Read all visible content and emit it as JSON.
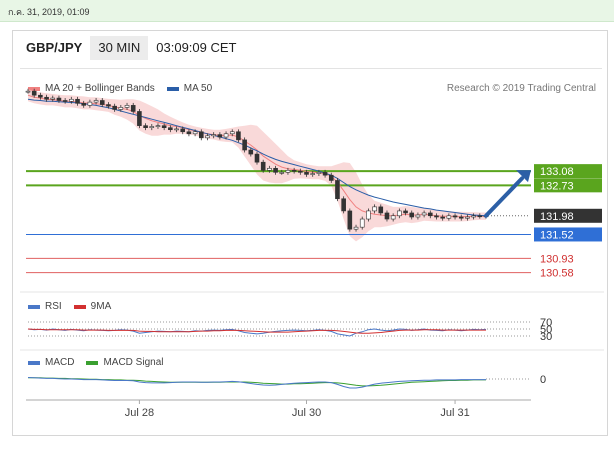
{
  "datestamp": "ก.ค. 31, 2019, 01:09",
  "header": {
    "symbol": "GBP/JPY",
    "timeframe": "30 MIN",
    "time": "03:09:09 CET"
  },
  "legend_main": [
    {
      "label": "MA 20 + Bollinger Bands",
      "color": "#f08080"
    },
    {
      "label": "MA 50",
      "color": "#2a5ea8"
    }
  ],
  "credit": "Research © 2019 Trading Central",
  "legend_rsi": [
    {
      "label": "RSI",
      "color": "#4a78c8"
    },
    {
      "label": "9MA",
      "color": "#d23030"
    }
  ],
  "legend_macd": [
    {
      "label": "MACD",
      "color": "#4a78c8"
    },
    {
      "label": "MACD Signal",
      "color": "#3aa030"
    }
  ],
  "colors": {
    "resistance": "#5aa51e",
    "support": "#2f6fd6",
    "lower": "#e06060",
    "price_tag": "#333333",
    "arrow": "#2c5fa6"
  },
  "chart_data": [
    {
      "type": "line",
      "name": "price",
      "x_ticks": [
        "Jul 28",
        "Jul 30",
        "Jul 31"
      ],
      "ylim": [
        130.3,
        134.3
      ],
      "last_price": "131.98",
      "levels": [
        {
          "value": 133.08,
          "label": "133.08",
          "style": "resistance"
        },
        {
          "value": 132.73,
          "label": "132.73",
          "style": "resistance"
        },
        {
          "value": 131.52,
          "label": "131.52",
          "style": "support"
        },
        {
          "value": 130.93,
          "label": "130.93",
          "style": "lower"
        },
        {
          "value": 130.58,
          "label": "130.58",
          "style": "lower"
        }
      ],
      "close": [
        135.05,
        134.95,
        134.9,
        134.85,
        134.88,
        134.82,
        134.8,
        134.85,
        134.75,
        134.7,
        134.78,
        134.82,
        134.72,
        134.68,
        134.6,
        134.65,
        134.7,
        134.55,
        134.2,
        134.15,
        134.18,
        134.2,
        134.15,
        134.1,
        134.12,
        134.05,
        134.0,
        134.05,
        133.9,
        133.95,
        133.98,
        133.92,
        134.0,
        134.05,
        133.85,
        133.6,
        133.5,
        133.3,
        133.1,
        133.15,
        133.05,
        133.05,
        133.1,
        133.08,
        133.05,
        133.0,
        133.02,
        133.05,
        132.98,
        132.85,
        132.4,
        132.1,
        131.65,
        131.7,
        131.9,
        132.1,
        132.2,
        132.05,
        131.9,
        131.98,
        132.1,
        132.05,
        131.95,
        132.0,
        132.05,
        131.98,
        131.95,
        131.92,
        131.98,
        131.95,
        131.92,
        131.95,
        131.98,
        131.97,
        131.98
      ],
      "ma50": [
        134.85,
        134.83,
        134.82,
        134.8,
        134.8,
        134.79,
        134.78,
        134.77,
        134.76,
        134.74,
        134.72,
        134.7,
        134.67,
        134.64,
        134.6,
        134.56,
        134.52,
        134.48,
        134.44,
        134.4,
        134.36,
        134.32,
        134.28,
        134.24,
        134.2,
        134.16,
        134.12,
        134.08,
        134.04,
        134.0,
        133.96,
        133.92,
        133.88,
        133.84,
        133.78,
        133.72,
        133.65,
        133.58,
        133.5,
        133.43,
        133.37,
        133.32,
        133.28,
        133.24,
        133.2,
        133.16,
        133.12,
        133.08,
        133.03,
        132.98,
        132.9,
        132.8,
        132.7,
        132.62,
        132.55,
        132.49,
        132.44,
        132.4,
        132.36,
        132.32,
        132.29,
        132.26,
        132.23,
        132.2,
        132.17,
        132.15,
        132.12,
        132.1,
        132.08,
        132.06,
        132.04,
        132.02,
        132.0,
        131.99,
        131.98
      ],
      "ma20": [
        134.95,
        134.9,
        134.88,
        134.85,
        134.84,
        134.82,
        134.8,
        134.8,
        134.78,
        134.76,
        134.75,
        134.74,
        134.72,
        134.7,
        134.66,
        134.63,
        134.6,
        134.55,
        134.45,
        134.38,
        134.32,
        134.28,
        134.24,
        134.2,
        134.18,
        134.15,
        134.1,
        134.07,
        134.03,
        134.0,
        133.98,
        133.96,
        133.96,
        133.97,
        133.92,
        133.82,
        133.72,
        133.6,
        133.45,
        133.35,
        133.25,
        133.18,
        133.14,
        133.12,
        133.1,
        133.07,
        133.05,
        133.04,
        133.02,
        132.96,
        132.8,
        132.6,
        132.38,
        132.2,
        132.1,
        132.05,
        132.02,
        132.0,
        131.98,
        131.98,
        132.0,
        132.02,
        132.0,
        132.0,
        132.02,
        132.0,
        131.98,
        131.97,
        131.97,
        131.96,
        131.96,
        131.96,
        131.97,
        131.97,
        131.97
      ],
      "bb_upper": [
        135.1,
        135.05,
        135.02,
        135.0,
        134.98,
        134.96,
        134.95,
        134.95,
        134.93,
        134.92,
        134.9,
        134.9,
        134.88,
        134.86,
        134.85,
        134.84,
        134.85,
        134.85,
        134.82,
        134.75,
        134.68,
        134.6,
        134.5,
        134.42,
        134.35,
        134.28,
        134.22,
        134.18,
        134.15,
        134.12,
        134.1,
        134.1,
        134.12,
        134.15,
        134.18,
        134.2,
        134.22,
        134.2,
        134.05,
        133.9,
        133.75,
        133.6,
        133.45,
        133.35,
        133.3,
        133.25,
        133.22,
        133.2,
        133.2,
        133.2,
        133.25,
        133.3,
        133.28,
        133.05,
        132.75,
        132.5,
        132.35,
        132.3,
        132.25,
        132.2,
        132.2,
        132.22,
        132.2,
        132.18,
        132.18,
        132.15,
        132.12,
        132.1,
        132.1,
        132.08,
        132.08,
        132.07,
        132.07,
        132.06,
        132.06
      ],
      "bb_lower": [
        134.8,
        134.75,
        134.72,
        134.7,
        134.7,
        134.68,
        134.65,
        134.65,
        134.63,
        134.6,
        134.6,
        134.58,
        134.56,
        134.54,
        134.47,
        134.42,
        134.35,
        134.25,
        134.08,
        134.0,
        133.95,
        133.95,
        133.98,
        133.98,
        134.0,
        134.0,
        133.98,
        133.96,
        133.91,
        133.88,
        133.86,
        133.82,
        133.8,
        133.79,
        133.66,
        133.44,
        133.22,
        133.0,
        132.85,
        132.8,
        132.78,
        132.78,
        132.83,
        132.89,
        132.9,
        132.89,
        132.88,
        132.88,
        132.84,
        132.72,
        132.35,
        131.9,
        131.48,
        131.35,
        131.45,
        131.6,
        131.7,
        131.7,
        131.72,
        131.76,
        131.8,
        131.82,
        131.8,
        131.82,
        131.86,
        131.85,
        131.84,
        131.84,
        131.84,
        131.84,
        131.84,
        131.85,
        131.87,
        131.88,
        131.88
      ]
    },
    {
      "type": "line",
      "name": "rsi",
      "y_ticks": [
        "70",
        "50",
        "30"
      ],
      "rsi": [
        50,
        48,
        49,
        47,
        50,
        48,
        46,
        49,
        47,
        45,
        48,
        47,
        46,
        45,
        46,
        48,
        47,
        44,
        38,
        40,
        42,
        44,
        43,
        42,
        44,
        43,
        42,
        45,
        44,
        46,
        47,
        46,
        48,
        49,
        45,
        40,
        38,
        36,
        38,
        41,
        43,
        45,
        46,
        47,
        46,
        45,
        46,
        48,
        46,
        43,
        36,
        33,
        30,
        38,
        42,
        48,
        50,
        47,
        45,
        47,
        50,
        49,
        46,
        48,
        50,
        47,
        46,
        45,
        48,
        47,
        45,
        47,
        49,
        48,
        49
      ],
      "ma9": [
        50,
        49,
        49,
        48,
        48,
        48,
        48,
        48,
        48,
        47,
        47,
        47,
        47,
        46,
        46,
        46,
        46,
        46,
        44,
        43,
        43,
        42,
        42,
        42,
        42,
        42,
        42,
        43,
        44,
        44,
        45,
        45,
        46,
        46,
        46,
        45,
        44,
        43,
        42,
        41,
        41,
        41,
        41,
        42,
        43,
        44,
        45,
        46,
        46,
        46,
        45,
        43,
        41,
        39,
        38,
        38,
        39,
        40,
        42,
        44,
        46,
        47,
        47,
        47,
        48,
        48,
        48,
        47,
        47,
        47,
        47,
        47,
        47,
        47,
        47
      ]
    },
    {
      "type": "line",
      "name": "macd",
      "y_ticks": [
        "0"
      ],
      "macd": [
        0.05,
        0.04,
        0.03,
        0.02,
        0.02,
        0.01,
        0.0,
        0.0,
        -0.01,
        -0.02,
        -0.02,
        -0.02,
        -0.03,
        -0.04,
        -0.05,
        -0.05,
        -0.05,
        -0.06,
        -0.1,
        -0.12,
        -0.13,
        -0.13,
        -0.13,
        -0.12,
        -0.11,
        -0.1,
        -0.1,
        -0.1,
        -0.11,
        -0.11,
        -0.1,
        -0.1,
        -0.09,
        -0.08,
        -0.09,
        -0.12,
        -0.15,
        -0.18,
        -0.2,
        -0.21,
        -0.2,
        -0.18,
        -0.16,
        -0.14,
        -0.13,
        -0.12,
        -0.11,
        -0.1,
        -0.1,
        -0.12,
        -0.18,
        -0.25,
        -0.3,
        -0.3,
        -0.27,
        -0.22,
        -0.17,
        -0.14,
        -0.12,
        -0.1,
        -0.08,
        -0.07,
        -0.06,
        -0.05,
        -0.04,
        -0.04,
        -0.03,
        -0.03,
        -0.03,
        -0.03,
        -0.02,
        -0.02,
        -0.02,
        -0.02,
        -0.02
      ],
      "signal": [
        0.04,
        0.04,
        0.04,
        0.03,
        0.03,
        0.02,
        0.02,
        0.01,
        0.01,
        0.0,
        -0.01,
        -0.01,
        -0.02,
        -0.02,
        -0.03,
        -0.03,
        -0.04,
        -0.04,
        -0.05,
        -0.07,
        -0.08,
        -0.09,
        -0.1,
        -0.11,
        -0.11,
        -0.11,
        -0.11,
        -0.11,
        -0.11,
        -0.11,
        -0.11,
        -0.11,
        -0.1,
        -0.1,
        -0.1,
        -0.1,
        -0.11,
        -0.12,
        -0.14,
        -0.15,
        -0.16,
        -0.17,
        -0.17,
        -0.16,
        -0.16,
        -0.15,
        -0.14,
        -0.13,
        -0.12,
        -0.12,
        -0.13,
        -0.15,
        -0.18,
        -0.21,
        -0.23,
        -0.23,
        -0.22,
        -0.21,
        -0.19,
        -0.17,
        -0.15,
        -0.13,
        -0.11,
        -0.1,
        -0.09,
        -0.08,
        -0.07,
        -0.06,
        -0.05,
        -0.05,
        -0.04,
        -0.04,
        -0.03,
        -0.03,
        -0.03
      ]
    }
  ]
}
